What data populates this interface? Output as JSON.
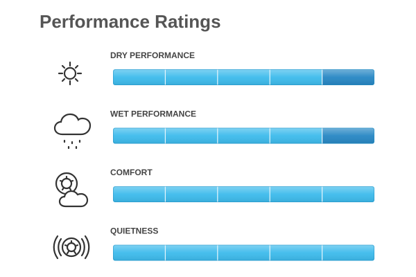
{
  "title": "Performance Ratings",
  "ratings": [
    {
      "label": "DRY PERFORMANCE",
      "value": 5,
      "max": 5,
      "colors": [
        "#3dbbec",
        "#3dbbec",
        "#3dbbec",
        "#3dbbec",
        "#2787c4"
      ]
    },
    {
      "label": "WET PERFORMANCE",
      "value": 5,
      "max": 5,
      "colors": [
        "#3dbbec",
        "#3dbbec",
        "#3dbbec",
        "#3dbbec",
        "#2787c4"
      ]
    },
    {
      "label": "COMFORT",
      "value": 5,
      "max": 5,
      "colors": [
        "#3dbbec",
        "#3dbbec",
        "#3dbbec",
        "#3dbbec",
        "#3dbbec"
      ]
    },
    {
      "label": "QUIETNESS",
      "value": 5,
      "max": 5,
      "colors": [
        "#3dbbec",
        "#3dbbec",
        "#3dbbec",
        "#3dbbec",
        "#3dbbec"
      ]
    }
  ]
}
